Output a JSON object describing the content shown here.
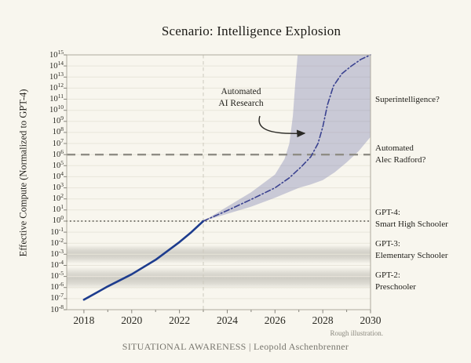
{
  "page": {
    "title": "Scenario: Intelligence Explosion",
    "note": "Rough illustration.",
    "footer": "SITUATIONAL AWARENESS | Leopold Aschenbrenner"
  },
  "chart_data": {
    "type": "line",
    "title": "Scenario: Intelligence Explosion",
    "xlabel": "",
    "ylabel": "Effective Compute (Normalized to GPT-4)",
    "x_axis": {
      "min": 2017.28,
      "max": 2030,
      "labeled_ticks": [
        2018,
        2020,
        2022,
        2024,
        2026,
        2028,
        2030
      ],
      "minor_tick_years": [
        2019,
        2021,
        2023,
        2025,
        2027,
        2029
      ]
    },
    "y_axis": {
      "scale": "log10",
      "min_exp": -8,
      "max_exp": 15,
      "tick_exponents": [
        15,
        14,
        13,
        12,
        11,
        10,
        9,
        8,
        7,
        6,
        5,
        4,
        3,
        2,
        1,
        0,
        -1,
        -2,
        -3,
        -4,
        -5,
        -6,
        -7,
        -8
      ],
      "tick_base": "10"
    },
    "grid": "horizontal",
    "series": [
      {
        "name": "historical-effective-compute",
        "style": "solid",
        "color": "#1d3c8e",
        "points_year_log10": [
          [
            2018,
            -7.1
          ],
          [
            2019,
            -5.9
          ],
          [
            2020,
            -4.8
          ],
          [
            2021,
            -3.5
          ],
          [
            2022,
            -1.9
          ],
          [
            2022.5,
            -1.0
          ],
          [
            2023,
            0
          ]
        ]
      },
      {
        "name": "projected-intelligence-explosion",
        "style": "dash-dot",
        "color": "#3a4290",
        "points_year_log10": [
          [
            2023,
            0
          ],
          [
            2024,
            0.95
          ],
          [
            2025,
            1.95
          ],
          [
            2026,
            3.0
          ],
          [
            2026.6,
            3.9
          ],
          [
            2027.1,
            4.9
          ],
          [
            2027.5,
            5.8
          ],
          [
            2027.8,
            7.0
          ],
          [
            2028.0,
            8.5
          ],
          [
            2028.2,
            10.5
          ],
          [
            2028.45,
            12.2
          ],
          [
            2028.8,
            13.3
          ],
          [
            2029.2,
            14.0
          ],
          [
            2029.6,
            14.6
          ],
          [
            2030,
            15
          ]
        ]
      }
    ],
    "uncertainty_band": {
      "name": "projection-uncertainty-band",
      "color": "rgba(135,139,182,0.42)",
      "upper_year_log10": [
        [
          2023,
          0
        ],
        [
          2024,
          1.3
        ],
        [
          2025,
          2.6
        ],
        [
          2026,
          4.2
        ],
        [
          2026.4,
          5.6
        ],
        [
          2026.6,
          7.0
        ],
        [
          2026.75,
          9.5
        ],
        [
          2026.85,
          12.5
        ],
        [
          2026.95,
          15
        ]
      ],
      "lower_year_log10": [
        [
          2023,
          0
        ],
        [
          2024,
          0.65
        ],
        [
          2025,
          1.3
        ],
        [
          2026,
          2.1
        ],
        [
          2027,
          3.0
        ],
        [
          2027.5,
          3.3
        ],
        [
          2028,
          3.7
        ],
        [
          2028.5,
          4.4
        ],
        [
          2029,
          5.3
        ],
        [
          2029.5,
          6.3
        ],
        [
          2030,
          7.6
        ]
      ]
    },
    "reference_lines": [
      {
        "name": "automated-alec-radford-level",
        "axis": "y",
        "log10": 6,
        "style": "dashed",
        "color": "#8f8d85"
      },
      {
        "name": "gpt4-level",
        "axis": "y",
        "log10": 0,
        "style": "dotted",
        "color": "#6f6d66"
      },
      {
        "name": "projection-start-2023",
        "axis": "x",
        "year": 2023,
        "style": "dashed",
        "color": "#ccc9bd"
      }
    ],
    "capability_bands": [
      {
        "name": "gpt3-capability-band",
        "top_log10": -2.15,
        "bottom_log10": -3.85,
        "color": "#5a5850",
        "max_opacity": 0.26
      },
      {
        "name": "gpt2-capability-band",
        "top_log10": -4.15,
        "bottom_log10": -6.15,
        "color": "#5a5850",
        "max_opacity": 0.26
      }
    ],
    "annotations": {
      "automated_ai_research": "Automated\nAI Research",
      "superintelligence": "Superintelligence?",
      "automated_alec_radford": "Automated\nAlec Radford?",
      "gpt4": "GPT-4:\nSmart High Schooler",
      "gpt3": "GPT-3:\nElementary Schooler",
      "gpt2": "GPT-2:\nPreschooler"
    }
  }
}
